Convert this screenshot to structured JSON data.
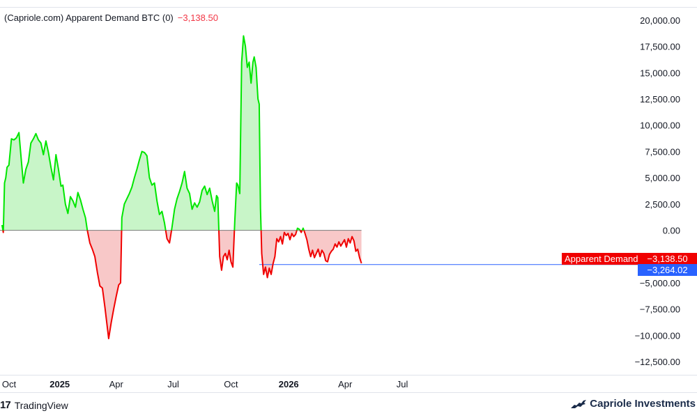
{
  "legend": {
    "source": "(Capriole.com) Apparent Demand BTC (0)",
    "value": "−3,138.50"
  },
  "footer": {
    "tradingview": "TradingView",
    "tradingview_logo": "17",
    "brand": "Capriole Investments"
  },
  "tags": {
    "series_name": "Apparent Demand",
    "series_value": "−3,138.50",
    "hline_value": "−3,264.02"
  },
  "colors": {
    "positive_line": "#00e600",
    "negative_line": "#f00000",
    "positive_fill": "#c8f5c8",
    "negative_fill": "#f8c8c8",
    "hline": "#2962ff",
    "tag_red": "#f00000",
    "tag_blue": "#2962ff"
  },
  "chart_data": {
    "type": "area",
    "title": "(Capriole.com) Apparent Demand BTC (0)",
    "ylim": [
      -13750,
      21250
    ],
    "y_ticks": [
      20000,
      17500,
      15000,
      12500,
      10000,
      7500,
      5000,
      2500,
      0,
      -2500,
      -5000,
      -7500,
      -10000,
      -12500
    ],
    "y_tick_labels": [
      "20,000.00",
      "17,500.00",
      "15,000.00",
      "12,500.00",
      "10,000.00",
      "7,500.00",
      "5,000.00",
      "2,500.00",
      "0.00",
      "−2,500.00",
      "−5,000.00",
      "−7,500.00",
      "−10,000.00",
      "−12,500.00"
    ],
    "x_ticks": [
      {
        "date": "2024-10-01",
        "label": "Oct",
        "bold": false
      },
      {
        "date": "2025-01-01",
        "label": "2025",
        "bold": true
      },
      {
        "date": "2025-04-01",
        "label": "Apr",
        "bold": false
      },
      {
        "date": "2025-07-01",
        "label": "Jul",
        "bold": false
      },
      {
        "date": "2025-10-01",
        "label": "Oct",
        "bold": false
      },
      {
        "date": "2026-01-01",
        "label": "2026",
        "bold": true
      },
      {
        "date": "2026-04-01",
        "label": "Apr",
        "bold": false
      },
      {
        "date": "2026-07-01",
        "label": "Jul",
        "bold": false
      }
    ],
    "horizontal_line": -3264.02,
    "last_value": -3138.5,
    "series": [
      {
        "name": "Apparent Demand",
        "points": [
          [
            "2024-10-01",
            500
          ],
          [
            "2024-10-03",
            -200
          ],
          [
            "2024-10-05",
            4500
          ],
          [
            "2024-10-07",
            5000
          ],
          [
            "2024-10-09",
            6000
          ],
          [
            "2024-10-12",
            6200
          ],
          [
            "2024-10-16",
            8700
          ],
          [
            "2024-10-20",
            8600
          ],
          [
            "2024-10-24",
            8800
          ],
          [
            "2024-10-28",
            9300
          ],
          [
            "2024-11-01",
            6500
          ],
          [
            "2024-11-04",
            4500
          ],
          [
            "2024-11-08",
            5800
          ],
          [
            "2024-11-12",
            6500
          ],
          [
            "2024-11-16",
            8300
          ],
          [
            "2024-11-20",
            8700
          ],
          [
            "2024-11-24",
            9200
          ],
          [
            "2024-11-28",
            8600
          ],
          [
            "2024-12-02",
            8300
          ],
          [
            "2024-12-06",
            7200
          ],
          [
            "2024-12-10",
            8500
          ],
          [
            "2024-12-14",
            7400
          ],
          [
            "2024-12-18",
            6000
          ],
          [
            "2024-12-22",
            4800
          ],
          [
            "2024-12-26",
            7200
          ],
          [
            "2024-12-30",
            5800
          ],
          [
            "2025-01-03",
            4200
          ],
          [
            "2025-01-06",
            4300
          ],
          [
            "2025-01-10",
            2500
          ],
          [
            "2025-01-14",
            1600
          ],
          [
            "2025-01-18",
            3200
          ],
          [
            "2025-01-22",
            2800
          ],
          [
            "2025-01-26",
            2200
          ],
          [
            "2025-01-30",
            3600
          ],
          [
            "2025-02-03",
            2900
          ],
          [
            "2025-02-07",
            2000
          ],
          [
            "2025-02-11",
            1200
          ],
          [
            "2025-02-14",
            0
          ],
          [
            "2025-02-18",
            -1200
          ],
          [
            "2025-02-22",
            -1800
          ],
          [
            "2025-02-26",
            -2500
          ],
          [
            "2025-03-02",
            -4000
          ],
          [
            "2025-03-06",
            -5300
          ],
          [
            "2025-03-10",
            -5500
          ],
          [
            "2025-03-14",
            -7300
          ],
          [
            "2025-03-18",
            -9300
          ],
          [
            "2025-03-20",
            -10300
          ],
          [
            "2025-03-24",
            -8800
          ],
          [
            "2025-03-28",
            -7500
          ],
          [
            "2025-04-01",
            -6300
          ],
          [
            "2025-04-05",
            -5200
          ],
          [
            "2025-04-08",
            -5000
          ],
          [
            "2025-04-10",
            1200
          ],
          [
            "2025-04-14",
            2500
          ],
          [
            "2025-04-18",
            3000
          ],
          [
            "2025-04-22",
            3500
          ],
          [
            "2025-04-26",
            4100
          ],
          [
            "2025-04-30",
            5000
          ],
          [
            "2025-05-04",
            5800
          ],
          [
            "2025-05-08",
            6700
          ],
          [
            "2025-05-12",
            7500
          ],
          [
            "2025-05-16",
            7400
          ],
          [
            "2025-05-20",
            7100
          ],
          [
            "2025-05-24",
            5000
          ],
          [
            "2025-05-28",
            4300
          ],
          [
            "2025-06-01",
            4500
          ],
          [
            "2025-06-05",
            2800
          ],
          [
            "2025-06-09",
            1500
          ],
          [
            "2025-06-13",
            1800
          ],
          [
            "2025-06-17",
            700
          ],
          [
            "2025-06-21",
            -800
          ],
          [
            "2025-06-25",
            -1200
          ],
          [
            "2025-06-29",
            300
          ],
          [
            "2025-07-03",
            2000
          ],
          [
            "2025-07-07",
            3000
          ],
          [
            "2025-07-11",
            3700
          ],
          [
            "2025-07-15",
            4500
          ],
          [
            "2025-07-19",
            5600
          ],
          [
            "2025-07-23",
            4000
          ],
          [
            "2025-07-27",
            3500
          ],
          [
            "2025-07-31",
            2000
          ],
          [
            "2025-08-04",
            2600
          ],
          [
            "2025-08-08",
            2200
          ],
          [
            "2025-08-12",
            2700
          ],
          [
            "2025-08-16",
            3800
          ],
          [
            "2025-08-20",
            4200
          ],
          [
            "2025-08-24",
            3400
          ],
          [
            "2025-08-28",
            4000
          ],
          [
            "2025-09-01",
            2800
          ],
          [
            "2025-09-05",
            1800
          ],
          [
            "2025-09-08",
            3300
          ],
          [
            "2025-09-10",
            3100
          ],
          [
            "2025-09-13",
            -2500
          ],
          [
            "2025-09-16",
            -3800
          ],
          [
            "2025-09-19",
            -2500
          ],
          [
            "2025-09-22",
            -2200
          ],
          [
            "2025-09-25",
            -2800
          ],
          [
            "2025-09-28",
            -1900
          ],
          [
            "2025-10-01",
            -3000
          ],
          [
            "2025-10-04",
            -3500
          ],
          [
            "2025-10-07",
            800
          ],
          [
            "2025-10-10",
            4500
          ],
          [
            "2025-10-12",
            4300
          ],
          [
            "2025-10-15",
            3500
          ],
          [
            "2025-10-18",
            16000
          ],
          [
            "2025-10-21",
            18500
          ],
          [
            "2025-10-24",
            17500
          ],
          [
            "2025-10-27",
            15500
          ],
          [
            "2025-10-30",
            16000
          ],
          [
            "2025-11-02",
            14000
          ],
          [
            "2025-11-05",
            16000
          ],
          [
            "2025-11-07",
            16500
          ],
          [
            "2025-11-10",
            15500
          ],
          [
            "2025-11-13",
            12500
          ],
          [
            "2025-11-15",
            12000
          ],
          [
            "2025-11-17",
            2100
          ],
          [
            "2025-11-19",
            -2200
          ],
          [
            "2025-11-22",
            -4200
          ],
          [
            "2025-11-25",
            -3500
          ],
          [
            "2025-11-28",
            -4500
          ],
          [
            "2025-12-01",
            -3600
          ],
          [
            "2025-12-04",
            -4200
          ],
          [
            "2025-12-07",
            -3200
          ],
          [
            "2025-12-10",
            -2500
          ],
          [
            "2025-12-13",
            -800
          ],
          [
            "2025-12-16",
            -1100
          ],
          [
            "2025-12-19",
            -600
          ],
          [
            "2025-12-22",
            -1300
          ],
          [
            "2025-12-25",
            -200
          ],
          [
            "2025-12-28",
            -500
          ],
          [
            "2025-12-31",
            -300
          ],
          [
            "2026-01-03",
            -900
          ],
          [
            "2026-01-06",
            -300
          ],
          [
            "2026-01-09",
            -600
          ],
          [
            "2026-01-12",
            -400
          ],
          [
            "2026-01-15",
            200
          ],
          [
            "2026-01-18",
            100
          ],
          [
            "2026-01-21",
            -200
          ],
          [
            "2026-01-24",
            200
          ],
          [
            "2026-01-27",
            -300
          ],
          [
            "2026-01-30",
            -900
          ],
          [
            "2026-02-02",
            -1800
          ],
          [
            "2026-02-05",
            -2500
          ],
          [
            "2026-02-08",
            -1900
          ],
          [
            "2026-02-11",
            -2600
          ],
          [
            "2026-02-14",
            -2200
          ],
          [
            "2026-02-17",
            -1800
          ],
          [
            "2026-02-20",
            -2500
          ],
          [
            "2026-02-23",
            -1900
          ],
          [
            "2026-02-26",
            -2200
          ],
          [
            "2026-03-01",
            -2900
          ],
          [
            "2026-03-04",
            -3000
          ],
          [
            "2026-03-07",
            -2300
          ],
          [
            "2026-03-10",
            -2000
          ],
          [
            "2026-03-13",
            -1800
          ],
          [
            "2026-03-16",
            -1300
          ],
          [
            "2026-03-19",
            -1600
          ],
          [
            "2026-03-22",
            -1100
          ],
          [
            "2026-03-25",
            -1500
          ],
          [
            "2026-03-28",
            -1200
          ],
          [
            "2026-03-31",
            -900
          ],
          [
            "2026-04-03",
            -1600
          ],
          [
            "2026-04-06",
            -800
          ],
          [
            "2026-04-09",
            -1200
          ],
          [
            "2026-04-12",
            -600
          ],
          [
            "2026-04-15",
            -1000
          ],
          [
            "2026-04-18",
            -2000
          ],
          [
            "2026-04-21",
            -1800
          ],
          [
            "2026-04-24",
            -2600
          ],
          [
            "2026-04-27",
            -3138.5
          ]
        ]
      }
    ]
  }
}
